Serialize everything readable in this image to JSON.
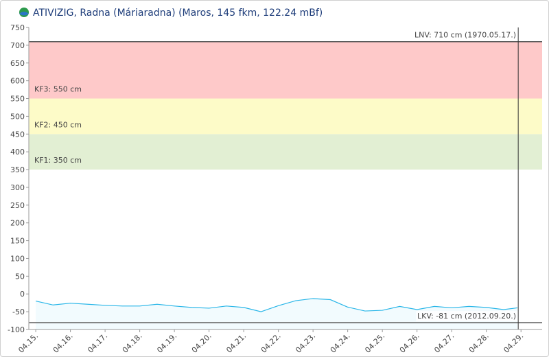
{
  "chart_data": {
    "type": "line",
    "title": "ATIVIZIG, Radna (Máriaradna) (Maros, 145 fkm, 122.24 mBf)",
    "x": [
      15,
      15.5,
      16,
      16.5,
      17,
      17.5,
      18,
      18.5,
      19,
      19.5,
      20,
      20.5,
      21,
      21.5,
      22,
      22.5,
      23,
      23.5,
      24,
      24.5,
      25,
      25.5,
      26,
      26.5,
      27,
      27.5,
      28,
      28.5,
      28.9
    ],
    "series": [
      {
        "color": "#29b6e8",
        "values": [
          -20,
          -31,
          -26,
          -29,
          -32,
          -34,
          -34,
          -29,
          -34,
          -38,
          -40,
          -34,
          -38,
          -50,
          -33,
          -19,
          -13,
          -16,
          -37,
          -48,
          -46,
          -35,
          -44,
          -35,
          -39,
          -35,
          -38,
          -44,
          -39
        ]
      }
    ],
    "xlim": [
      14.8,
      29.61
    ],
    "xticks": [
      {
        "value": 15,
        "label": "04.15."
      },
      {
        "value": 16,
        "label": "04.16."
      },
      {
        "value": 17,
        "label": "04.17."
      },
      {
        "value": 18,
        "label": "04.18."
      },
      {
        "value": 19,
        "label": "04.19."
      },
      {
        "value": 20,
        "label": "04.20."
      },
      {
        "value": 21,
        "label": "04.21."
      },
      {
        "value": 22,
        "label": "04.22."
      },
      {
        "value": 23,
        "label": "04.23."
      },
      {
        "value": 24,
        "label": "04.24."
      },
      {
        "value": 25,
        "label": "04.25."
      },
      {
        "value": 26,
        "label": "04.26."
      },
      {
        "value": 27,
        "label": "04.27."
      },
      {
        "value": 28,
        "label": "04.28."
      },
      {
        "value": 29,
        "label": "04.29."
      }
    ],
    "ylim": [
      -100,
      750
    ],
    "yticks": [
      -100,
      -50,
      0,
      50,
      100,
      150,
      200,
      250,
      300,
      350,
      400,
      450,
      500,
      550,
      600,
      650,
      700,
      750
    ],
    "bands": [
      {
        "from": 350,
        "to": 450,
        "color": "#e2efd3",
        "label": "KF1: 350 cm"
      },
      {
        "from": 450,
        "to": 550,
        "color": "#fdfbc8",
        "label": "KF2: 450 cm"
      },
      {
        "from": 550,
        "to": 710,
        "color": "#fec9c9",
        "label": "KF3: 550 cm"
      }
    ],
    "plot_lines": [
      {
        "value": 710,
        "label": "LNV: 710 cm (1970.05.17.)"
      },
      {
        "value": -81,
        "label": "LKV: -81 cm (2012.09.20.)"
      }
    ],
    "marker_x": 28.92
  }
}
